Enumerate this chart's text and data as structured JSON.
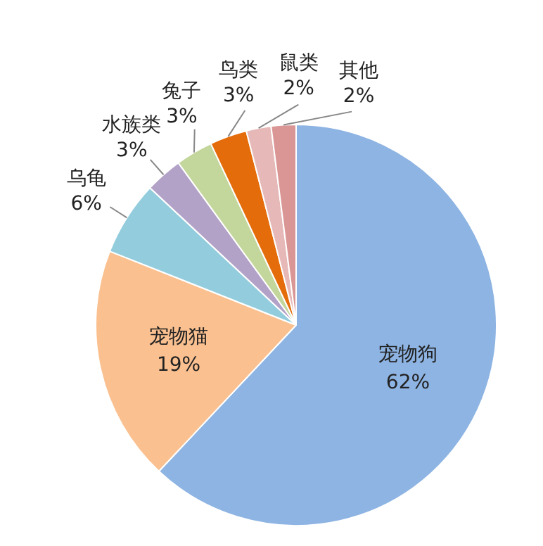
{
  "chart_data": {
    "type": "pie",
    "categories": [
      "宠物狗",
      "宠物猫",
      "乌龟",
      "水族类",
      "兔子",
      "鸟类",
      "鼠类",
      "其他"
    ],
    "values": [
      62,
      19,
      6,
      3,
      3,
      3,
      2,
      2
    ],
    "value_labels": [
      "62%",
      "19%",
      "6%",
      "3%",
      "3%",
      "3%",
      "2%",
      "2%"
    ],
    "colors": [
      "#8eb4e3",
      "#fac090",
      "#93cddd",
      "#b3a2c7",
      "#c3d69b",
      "#e46c0a",
      "#e6b9b8",
      "#d99694"
    ],
    "legend": false
  }
}
